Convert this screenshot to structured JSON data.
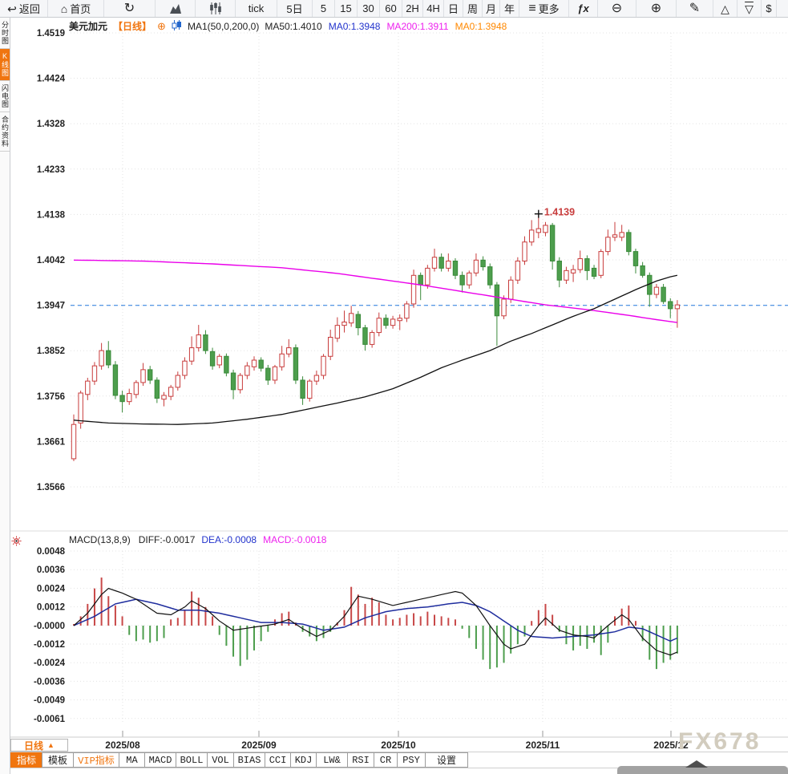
{
  "toolbar": {
    "items": [
      {
        "name": "back",
        "label": "返回",
        "glyph": "↩"
      },
      {
        "name": "home",
        "label": "首页",
        "glyph": "⌂"
      },
      {
        "name": "refresh",
        "label": "",
        "glyph": "↻",
        "glyph_class": "big"
      },
      {
        "name": "area-chart",
        "label": "",
        "svg": "area"
      },
      {
        "name": "candle-chart",
        "label": "",
        "svg": "candles"
      },
      {
        "name": "tick",
        "label": "tick"
      },
      {
        "name": "5day",
        "label": "5日"
      },
      {
        "name": "min5",
        "label": "5"
      },
      {
        "name": "min15",
        "label": "15"
      },
      {
        "name": "min30",
        "label": "30"
      },
      {
        "name": "min60",
        "label": "60"
      },
      {
        "name": "h2",
        "label": "2H"
      },
      {
        "name": "h4",
        "label": "4H"
      },
      {
        "name": "day",
        "label": "日"
      },
      {
        "name": "week",
        "label": "周"
      },
      {
        "name": "month",
        "label": "月"
      },
      {
        "name": "year",
        "label": "年"
      },
      {
        "name": "more",
        "label": "更多",
        "glyph": "≡",
        "glyph_class": "big"
      },
      {
        "name": "fx",
        "label": "",
        "glyph": "ƒx",
        "glyph_class": "fx"
      },
      {
        "name": "zoom-out",
        "label": "",
        "glyph": "⊖",
        "glyph_class": "big"
      },
      {
        "name": "zoom-in",
        "label": "",
        "glyph": "⊕",
        "glyph_class": "big"
      },
      {
        "name": "draw",
        "label": "",
        "glyph": "✎",
        "glyph_class": "big"
      },
      {
        "name": "triangle-up",
        "label": "",
        "glyph": "△"
      },
      {
        "name": "scroll-down",
        "label": "",
        "glyph": "▽",
        "glyph_class": "overline"
      },
      {
        "name": "dollar",
        "label": "$"
      }
    ]
  },
  "sidebar": {
    "tabs": [
      {
        "label": "分时图",
        "active": false
      },
      {
        "label": "K线图",
        "active": true
      },
      {
        "label": "闪电图",
        "active": false
      },
      {
        "label": "合约资料",
        "active": false
      }
    ]
  },
  "chart_header": {
    "symbol": "美元加元",
    "period": "【日线】",
    "add_icon": "⊕",
    "ma_settings": "MA1(50,0,200,0)",
    "ma_values": [
      {
        "label": "MA50:1.4010",
        "color": "#222222"
      },
      {
        "label": "MA0:1.3948",
        "color": "#2233cc"
      },
      {
        "label": "MA200:1.3911",
        "color": "#ee22ee"
      },
      {
        "label": "MA0:1.3948",
        "color": "#ff8800"
      }
    ]
  },
  "macd_header": {
    "title": "MACD(13,8,9)",
    "values": [
      {
        "label": "DIFF:-0.0017",
        "color": "#222222"
      },
      {
        "label": "DEA:-0.0008",
        "color": "#2233cc"
      },
      {
        "label": "MACD:-0.0018",
        "color": "#ee22ee"
      }
    ]
  },
  "bottom": {
    "period_selector": "日线",
    "period_arrow": "▲",
    "indicator_tabs": [
      {
        "label": "指标",
        "style": "active"
      },
      {
        "label": "模板",
        "style": ""
      },
      {
        "label": "VIP指标",
        "style": "vip"
      },
      {
        "label": "MA",
        "style": ""
      },
      {
        "label": "MACD",
        "style": ""
      },
      {
        "label": "BOLL",
        "style": ""
      },
      {
        "label": "VOL",
        "style": ""
      },
      {
        "label": "BIAS",
        "style": ""
      },
      {
        "label": "CCI",
        "style": ""
      },
      {
        "label": "KDJ",
        "style": ""
      },
      {
        "label": "LW&",
        "style": ""
      },
      {
        "label": "RSI",
        "style": ""
      },
      {
        "label": "CR",
        "style": ""
      },
      {
        "label": "PSY",
        "style": ""
      },
      {
        "label": "设置",
        "style": ""
      }
    ]
  },
  "watermark": {
    "text": "FX678"
  },
  "colors": {
    "accent_orange": "#f0750f",
    "candle_up": "#c83c3c",
    "candle_down_fill": "#4d9e4d",
    "candle_down_stroke": "#3a8a3a",
    "ma50": "#111111",
    "ma200": "#ea00ea",
    "price_line": "#2278dd",
    "diff_line": "#111111",
    "dea_line": "#1f2d9e",
    "hist_pos": "#c84848",
    "hist_neg": "#4d9e4d",
    "grid": "#e3e3e3",
    "annotation_red": "#c83c3c"
  },
  "chart_data": {
    "type": "candlestick+macd",
    "title": "美元加元 日线 (USD/CAD daily)",
    "x_labels": [
      "2025/08",
      "2025/09",
      "2025/10",
      "2025/11",
      "2025/12"
    ],
    "price_axis_labels": [
      "1.4519",
      "1.4424",
      "1.4328",
      "1.4233",
      "1.4138",
      "1.4042",
      "1.3947",
      "1.3852",
      "1.3756",
      "1.3661",
      "1.3566"
    ],
    "price_axis_range": [
      1.3566,
      1.4519
    ],
    "macd_axis_labels": [
      "0.0048",
      "0.0036",
      "0.0024",
      "0.0012",
      "-0.0000",
      "-0.0012",
      "-0.0024",
      "-0.0036",
      "-0.0049",
      "-0.0061"
    ],
    "macd_axis_range": [
      -0.0061,
      0.0048
    ],
    "current_price": 1.3947,
    "peak_annotation": {
      "index": 67,
      "price": 1.4139,
      "label": "1.4139"
    },
    "candles": [
      [
        1.3625,
        1.3718,
        1.362,
        1.3697
      ],
      [
        1.37,
        1.3768,
        1.3688,
        1.3763
      ],
      [
        1.376,
        1.3795,
        1.3748,
        1.3788
      ],
      [
        1.3788,
        1.3828,
        1.378,
        1.382
      ],
      [
        1.382,
        1.3868,
        1.3812,
        1.3852
      ],
      [
        1.3852,
        1.3872,
        1.3815,
        1.3822
      ],
      [
        1.3822,
        1.383,
        1.375,
        1.3758
      ],
      [
        1.3758,
        1.3768,
        1.3722,
        1.3745
      ],
      [
        1.3745,
        1.3772,
        1.3738,
        1.3762
      ],
      [
        1.376,
        1.379,
        1.3752,
        1.3785
      ],
      [
        1.3785,
        1.3826,
        1.3778,
        1.3812
      ],
      [
        1.3812,
        1.382,
        1.3782,
        1.379
      ],
      [
        1.379,
        1.3796,
        1.3742,
        1.3752
      ],
      [
        1.375,
        1.3765,
        1.3735,
        1.3758
      ],
      [
        1.3756,
        1.378,
        1.3748,
        1.3775
      ],
      [
        1.3775,
        1.3808,
        1.3768,
        1.38
      ],
      [
        1.38,
        1.3838,
        1.3792,
        1.383
      ],
      [
        1.383,
        1.3882,
        1.3822,
        1.3858
      ],
      [
        1.3858,
        1.3906,
        1.385,
        1.3885
      ],
      [
        1.3885,
        1.3895,
        1.3845,
        1.3852
      ],
      [
        1.385,
        1.3858,
        1.3812,
        1.382
      ],
      [
        1.3822,
        1.3845,
        1.3815,
        1.384
      ],
      [
        1.384,
        1.3846,
        1.3798,
        1.3805
      ],
      [
        1.3805,
        1.3812,
        1.375,
        1.377
      ],
      [
        1.377,
        1.3805,
        1.3762,
        1.38
      ],
      [
        1.38,
        1.3828,
        1.3792,
        1.382
      ],
      [
        1.3818,
        1.384,
        1.381,
        1.3832
      ],
      [
        1.3832,
        1.3838,
        1.3808,
        1.3815
      ],
      [
        1.3815,
        1.3822,
        1.378,
        1.379
      ],
      [
        1.379,
        1.3822,
        1.3782,
        1.3818
      ],
      [
        1.3818,
        1.3862,
        1.381,
        1.3845
      ],
      [
        1.3845,
        1.3876,
        1.3838,
        1.3858
      ],
      [
        1.3858,
        1.3865,
        1.3782,
        1.379
      ],
      [
        1.379,
        1.3798,
        1.3738,
        1.3752
      ],
      [
        1.3752,
        1.3792,
        1.3745,
        1.3788
      ],
      [
        1.3788,
        1.381,
        1.378,
        1.38
      ],
      [
        1.38,
        1.3845,
        1.3792,
        1.384
      ],
      [
        1.384,
        1.3896,
        1.3832,
        1.388
      ],
      [
        1.3878,
        1.3922,
        1.387,
        1.3905
      ],
      [
        1.3905,
        1.3936,
        1.389,
        1.3912
      ],
      [
        1.391,
        1.3946,
        1.3902,
        1.393
      ],
      [
        1.3928,
        1.3935,
        1.3884,
        1.39
      ],
      [
        1.39,
        1.3906,
        1.3852,
        1.3865
      ],
      [
        1.3865,
        1.3895,
        1.3858,
        1.389
      ],
      [
        1.389,
        1.3932,
        1.3882,
        1.392
      ],
      [
        1.392,
        1.3928,
        1.3898,
        1.3905
      ],
      [
        1.3905,
        1.3925,
        1.3898,
        1.3918
      ],
      [
        1.3915,
        1.3928,
        1.3895,
        1.392
      ],
      [
        1.392,
        1.3956,
        1.3912,
        1.395
      ],
      [
        1.395,
        1.4022,
        1.3942,
        1.401
      ],
      [
        1.401,
        1.4016,
        1.3958,
        1.399
      ],
      [
        1.399,
        1.4032,
        1.3982,
        1.4025
      ],
      [
        1.4025,
        1.4066,
        1.4018,
        1.4048
      ],
      [
        1.4048,
        1.4056,
        1.4018,
        1.4025
      ],
      [
        1.4025,
        1.4056,
        1.4018,
        1.404
      ],
      [
        1.404,
        1.4046,
        1.4002,
        1.401
      ],
      [
        1.401,
        1.4018,
        1.3974,
        1.399
      ],
      [
        1.399,
        1.402,
        1.3982,
        1.4015
      ],
      [
        1.4015,
        1.4056,
        1.4008,
        1.4042
      ],
      [
        1.4042,
        1.405,
        1.402,
        1.4028
      ],
      [
        1.4028,
        1.4035,
        1.3982,
        1.399
      ],
      [
        1.399,
        1.3996,
        1.3862,
        1.3925
      ],
      [
        1.3925,
        1.3968,
        1.3918,
        1.396
      ],
      [
        1.396,
        1.4008,
        1.3952,
        1.4
      ],
      [
        1.4,
        1.4048,
        1.3992,
        1.404
      ],
      [
        1.404,
        1.4092,
        1.4032,
        1.408
      ],
      [
        1.408,
        1.4126,
        1.4072,
        1.4105
      ],
      [
        1.41,
        1.4139,
        1.4088,
        1.4108
      ],
      [
        1.41,
        1.4122,
        1.4092,
        1.4115
      ],
      [
        1.4115,
        1.412,
        1.4022,
        1.404
      ],
      [
        1.404,
        1.4048,
        1.3985,
        1.4
      ],
      [
        1.4,
        1.4028,
        1.3992,
        1.402
      ],
      [
        1.4015,
        1.4032,
        1.3996,
        1.4022
      ],
      [
        1.4022,
        1.4062,
        1.4015,
        1.4045
      ],
      [
        1.4045,
        1.4052,
        1.4,
        1.402
      ],
      [
        1.4025,
        1.4032,
        1.4002,
        1.4008
      ],
      [
        1.401,
        1.4065,
        1.4004,
        1.406
      ],
      [
        1.406,
        1.4106,
        1.4052,
        1.409
      ],
      [
        1.409,
        1.4122,
        1.4082,
        1.4095
      ],
      [
        1.409,
        1.4116,
        1.4082,
        1.41
      ],
      [
        1.41,
        1.4106,
        1.4052,
        1.406
      ],
      [
        1.406,
        1.4066,
        1.4014,
        1.403
      ],
      [
        1.403,
        1.4038,
        1.4005,
        1.401
      ],
      [
        1.401,
        1.4016,
        1.3944,
        1.397
      ],
      [
        1.397,
        1.3992,
        1.3962,
        1.3985
      ],
      [
        1.3985,
        1.3992,
        1.395,
        1.3955
      ],
      [
        1.3955,
        1.3962,
        1.392,
        1.394
      ],
      [
        1.394,
        1.3958,
        1.39,
        1.3948
      ]
    ],
    "ma50_points": [
      [
        0,
        1.3706
      ],
      [
        5,
        1.37
      ],
      [
        10,
        1.3698
      ],
      [
        15,
        1.3697
      ],
      [
        20,
        1.37
      ],
      [
        25,
        1.3708
      ],
      [
        30,
        1.3718
      ],
      [
        34,
        1.373
      ],
      [
        38,
        1.3742
      ],
      [
        42,
        1.3755
      ],
      [
        46,
        1.3772
      ],
      [
        50,
        1.3796
      ],
      [
        53,
        1.3816
      ],
      [
        56,
        1.3832
      ],
      [
        60,
        1.3852
      ],
      [
        63,
        1.3872
      ],
      [
        66,
        1.3888
      ],
      [
        69,
        1.3906
      ],
      [
        72,
        1.3924
      ],
      [
        75,
        1.394
      ],
      [
        78,
        1.396
      ],
      [
        81,
        1.398
      ],
      [
        84,
        1.3998
      ],
      [
        86,
        1.4007
      ],
      [
        87,
        1.401
      ]
    ],
    "ma200_points": [
      [
        0,
        1.4042
      ],
      [
        10,
        1.404
      ],
      [
        20,
        1.4034
      ],
      [
        30,
        1.4026
      ],
      [
        38,
        1.4014
      ],
      [
        44,
        1.4002
      ],
      [
        50,
        1.399
      ],
      [
        56,
        1.3976
      ],
      [
        62,
        1.3962
      ],
      [
        68,
        1.3948
      ],
      [
        74,
        1.3938
      ],
      [
        80,
        1.3926
      ],
      [
        84,
        1.3917
      ],
      [
        87,
        1.3911
      ]
    ],
    "macd": {
      "hist": [
        0.0001,
        0.0006,
        0.0014,
        0.0024,
        0.0031,
        0.0019,
        0.0013,
        0.0006,
        -0.0006,
        -0.001,
        -0.0009,
        -0.0011,
        -0.001,
        -0.0008,
        0.0004,
        0.0005,
        0.001,
        0.0022,
        0.0018,
        0.0012,
        0.0006,
        -0.0006,
        -0.0013,
        -0.002,
        -0.0026,
        -0.0022,
        -0.0016,
        -0.001,
        -0.0004,
        0.0004,
        0.0008,
        0.0009,
        0.0002,
        -0.0004,
        -0.0007,
        -0.001,
        -0.0008,
        -0.0004,
        0.0002,
        0.001,
        0.0025,
        0.002,
        0.0014,
        0.0018,
        0.0015,
        0.0007,
        0.0004,
        0.0005,
        0.0007,
        0.0008,
        0.0006,
        0.0009,
        0.0007,
        0.0006,
        0.0005,
        0.0004,
        -0.0002,
        -0.0008,
        -0.0015,
        -0.0022,
        -0.0028,
        -0.0027,
        -0.0024,
        -0.0018,
        -0.0012,
        -0.0007,
        0.0003,
        0.001,
        0.0014,
        0.0007,
        -0.0004,
        -0.0012,
        -0.0016,
        -0.0013,
        -0.0015,
        -0.0011,
        -0.0019,
        -0.0011,
        0.0006,
        0.0011,
        0.0013,
        0.0003,
        -0.001,
        -0.0022,
        -0.0028,
        -0.0024,
        -0.0022,
        -0.0018
      ],
      "diff_points": [
        [
          0,
          0.0
        ],
        [
          2,
          0.0008
        ],
        [
          4,
          0.002
        ],
        [
          5,
          0.0024
        ],
        [
          7,
          0.0021
        ],
        [
          9,
          0.0017
        ],
        [
          12,
          0.0008
        ],
        [
          14,
          0.0007
        ],
        [
          16,
          0.0012
        ],
        [
          17,
          0.0016
        ],
        [
          19,
          0.0011
        ],
        [
          21,
          0.0003
        ],
        [
          23,
          -0.0003
        ],
        [
          26,
          -0.0001
        ],
        [
          29,
          0.0001
        ],
        [
          31,
          0.0004
        ],
        [
          33,
          -0.0002
        ],
        [
          35,
          -0.0007
        ],
        [
          37,
          -0.0003
        ],
        [
          39,
          0.0006
        ],
        [
          41,
          0.0019
        ],
        [
          43,
          0.0017
        ],
        [
          46,
          0.0013
        ],
        [
          49,
          0.0016
        ],
        [
          52,
          0.0019
        ],
        [
          55,
          0.0022
        ],
        [
          56,
          0.0021
        ],
        [
          58,
          0.0013
        ],
        [
          60,
          0.0
        ],
        [
          62,
          -0.0012
        ],
        [
          63,
          -0.0015
        ],
        [
          65,
          -0.0012
        ],
        [
          67,
          0.0
        ],
        [
          68,
          0.0005
        ],
        [
          70,
          -0.0003
        ],
        [
          72,
          -0.0006
        ],
        [
          74,
          -0.0007
        ],
        [
          75,
          -0.0008
        ],
        [
          77,
          0.0
        ],
        [
          79,
          0.0007
        ],
        [
          80,
          0.0004
        ],
        [
          82,
          -0.0008
        ],
        [
          84,
          -0.0016
        ],
        [
          86,
          -0.0019
        ],
        [
          87,
          -0.0017
        ]
      ],
      "dea_points": [
        [
          0,
          0.0
        ],
        [
          3,
          0.0006
        ],
        [
          6,
          0.0014
        ],
        [
          9,
          0.0017
        ],
        [
          12,
          0.0014
        ],
        [
          15,
          0.001
        ],
        [
          18,
          0.001
        ],
        [
          21,
          0.0008
        ],
        [
          24,
          0.0005
        ],
        [
          27,
          0.0002
        ],
        [
          30,
          0.0002
        ],
        [
          33,
          0.0001
        ],
        [
          36,
          -0.0003
        ],
        [
          39,
          -0.0001
        ],
        [
          42,
          0.0005
        ],
        [
          45,
          0.0009
        ],
        [
          48,
          0.0011
        ],
        [
          51,
          0.0012
        ],
        [
          54,
          0.0014
        ],
        [
          56,
          0.0015
        ],
        [
          58,
          0.0013
        ],
        [
          60,
          0.0009
        ],
        [
          62,
          0.0003
        ],
        [
          64,
          -0.0003
        ],
        [
          66,
          -0.0007
        ],
        [
          69,
          -0.0008
        ],
        [
          72,
          -0.0007
        ],
        [
          75,
          -0.0006
        ],
        [
          78,
          -0.0004
        ],
        [
          80,
          -0.0001
        ],
        [
          82,
          -0.0002
        ],
        [
          84,
          -0.0006
        ],
        [
          86,
          -0.001
        ],
        [
          87,
          -0.0008
        ]
      ]
    }
  }
}
